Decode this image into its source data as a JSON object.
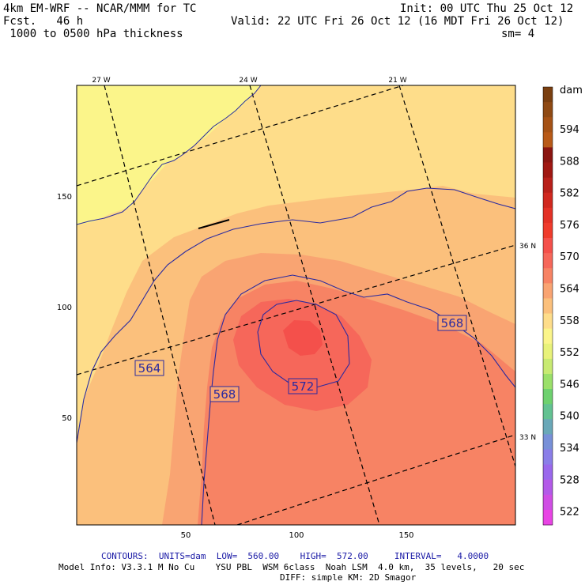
{
  "header": {
    "model": "4km EM-WRF -- NCAR/MMM for TC",
    "forecast": "Fcst.   46 h",
    "field": " 1000 to 0500 hPa thickness",
    "init": "Init: 00 UTC Thu 25 Oct 12",
    "valid": "Valid: 22 UTC Fri 26 Oct 12 (16 MDT Fri 26 Oct 12)",
    "smoothing": "sm= 4"
  },
  "map": {
    "longitude_labels": [
      "27 W",
      "24 W",
      "21 W"
    ],
    "latitude_labels": [
      "36 N",
      "33 N"
    ],
    "x_ticks": [
      "50",
      "100",
      "150"
    ],
    "y_ticks": [
      "150",
      "100",
      "50"
    ],
    "contour_labels": [
      "564",
      "568",
      "568",
      "572"
    ],
    "fill_colors": {
      "land": "#fbf58a",
      "t560": "#fedd8a",
      "t564": "#fbc07c",
      "t566": "#f9a472",
      "t568": "#f78364",
      "t570": "#f6675a",
      "t572": "#f4504b"
    },
    "contour_color": "#2a2aa0"
  },
  "colorbar": {
    "unit": "dam",
    "labels": [
      "594",
      "588",
      "582",
      "576",
      "570",
      "564",
      "558",
      "552",
      "546",
      "540",
      "534",
      "528",
      "522"
    ],
    "colors": [
      "#7a3f10",
      "#8f4a14",
      "#a55216",
      "#b85a18",
      "#8a1510",
      "#a01812",
      "#b8201a",
      "#d0281f",
      "#e33126",
      "#ef3b2c",
      "#f4504b",
      "#f6675a",
      "#f78364",
      "#f9a472",
      "#fbc07c",
      "#fedd8a",
      "#fbf58a",
      "#e8f27a",
      "#c8ea72",
      "#9be06a",
      "#6ed16f",
      "#63c292",
      "#6aa8b8",
      "#7890d8",
      "#8a7ee8",
      "#9a68ec",
      "#b35ae8",
      "#cf4ee4",
      "#e844e4"
    ]
  },
  "footer": {
    "contours": "CONTOURS:  UNITS=dam  LOW=  560.00    HIGH=  572.00     INTERVAL=   4.0000",
    "model_info": "Model Info: V3.3.1 M No Cu    YSU PBL  WSM 6class  Noah LSM  4.0 km,  35 levels,   20 sec",
    "diff": "DIFF: simple KM: 2D Smagor"
  }
}
